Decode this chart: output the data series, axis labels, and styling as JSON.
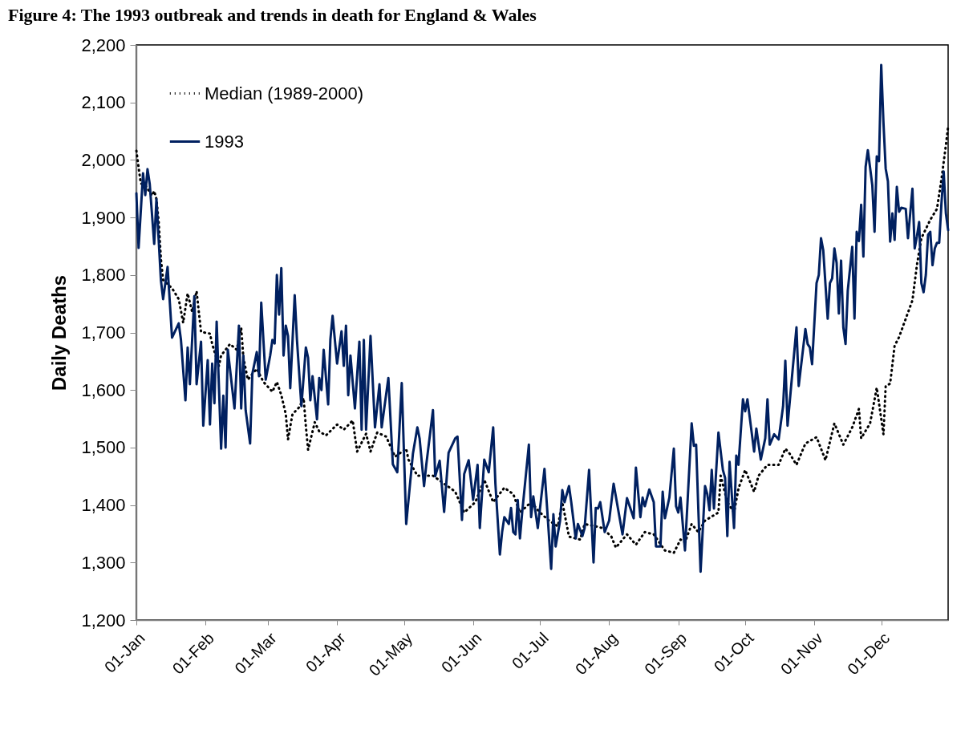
{
  "chart_data": {
    "type": "line",
    "title": "Figure 4: The 1993 outbreak and trends in death for England & Wales",
    "ylabel": "Daily Deaths",
    "xlim": [
      "--01-01",
      "--12-31"
    ],
    "xticks": [
      {
        "value": "--01-01",
        "label": "01-Jan"
      },
      {
        "value": "--02-01",
        "label": "01-Feb"
      },
      {
        "value": "--03-01",
        "label": "01-Mar"
      },
      {
        "value": "--04-01",
        "label": "01-Apr"
      },
      {
        "value": "--05-01",
        "label": "01-May"
      },
      {
        "value": "--06-01",
        "label": "01-Jun"
      },
      {
        "value": "--07-01",
        "label": "01-Jul"
      },
      {
        "value": "--08-01",
        "label": "01-Aug"
      },
      {
        "value": "--09-01",
        "label": "01-Sep"
      },
      {
        "value": "--10-01",
        "label": "01-Oct"
      },
      {
        "value": "--11-01",
        "label": "01-Nov"
      },
      {
        "value": "--12-01",
        "label": "01-Dec"
      }
    ],
    "ylim": [
      1200,
      2200
    ],
    "yticks": [
      {
        "value": 1200,
        "label": "1,200"
      },
      {
        "value": 1300,
        "label": "1,300"
      },
      {
        "value": 1400,
        "label": "1,400"
      },
      {
        "value": 1500,
        "label": "1,500"
      },
      {
        "value": 1600,
        "label": "1,600"
      },
      {
        "value": 1700,
        "label": "1,700"
      },
      {
        "value": 1800,
        "label": "1,800"
      },
      {
        "value": 1900,
        "label": "1,900"
      },
      {
        "value": 2000,
        "label": "2,000"
      },
      {
        "value": 2100,
        "label": "2,100"
      },
      {
        "value": 2200,
        "label": "2,200"
      }
    ],
    "grid": false,
    "legend": "top left",
    "series": [
      {
        "name": "Median (1989-2000)",
        "color": "#000000",
        "line_style": "dotted",
        "x": [
          "--01-01",
          "--01-02",
          "--01-03",
          "--01-05",
          "--01-08",
          "--01-09",
          "--01-10",
          "--01-11",
          "--01-12",
          "--01-13",
          "--01-17",
          "--01-20",
          "--01-22",
          "--01-24",
          "--01-26",
          "--01-28",
          "--01-29",
          "--01-30",
          "--02-03",
          "--02-04",
          "--02-07",
          "--02-08",
          "--02-12",
          "--02-15",
          "--02-17",
          "--02-18",
          "--02-20",
          "--02-24",
          "--02-27",
          "--03-03",
          "--03-05",
          "--03-07",
          "--03-09",
          "--03-10",
          "--03-12",
          "--03-15",
          "--03-17",
          "--03-18",
          "--03-19",
          "--03-22",
          "--03-24",
          "--03-27",
          "--04-01",
          "--04-04",
          "--04-08",
          "--04-10",
          "--04-14",
          "--04-16",
          "--04-19",
          "--04-23",
          "--04-27",
          "--05-02",
          "--05-03",
          "--05-07",
          "--05-14",
          "--05-19",
          "--05-22",
          "--05-24",
          "--05-28",
          "--06-02",
          "--06-06",
          "--06-10",
          "--06-15",
          "--06-19",
          "--06-22",
          "--06-27",
          "--07-01",
          "--07-05",
          "--07-09",
          "--07-11",
          "--07-14",
          "--07-19",
          "--07-21",
          "--07-26",
          "--07-29",
          "--08-02",
          "--08-04",
          "--08-09",
          "--08-13",
          "--08-17",
          "--08-21",
          "--08-26",
          "--08-30",
          "--09-02",
          "--09-04",
          "--09-07",
          "--09-10",
          "--09-13",
          "--09-19",
          "--09-20",
          "--09-23",
          "--09-26",
          "--09-28",
          "--10-01",
          "--10-05",
          "--10-07",
          "--10-11",
          "--10-16",
          "--10-19",
          "--10-21",
          "--10-24",
          "--10-28",
          "--11-02",
          "--11-06",
          "--11-10",
          "--11-14",
          "--11-18",
          "--11-21",
          "--11-22",
          "--11-26",
          "--11-29",
          "--12-02",
          "--12-03",
          "--12-05",
          "--12-07",
          "--12-09",
          "--12-12",
          "--12-15",
          "--12-17",
          "--12-19",
          "--12-23",
          "--12-26",
          "--12-28",
          "--12-30",
          "--12-31"
        ],
        "values": [
          2016,
          1987,
          1959,
          1956,
          1938,
          1946,
          1932,
          1893,
          1828,
          1791,
          1777,
          1758,
          1717,
          1768,
          1736,
          1772,
          1736,
          1701,
          1698,
          1680,
          1642,
          1660,
          1680,
          1670,
          1708,
          1656,
          1618,
          1637,
          1614,
          1597,
          1614,
          1591,
          1558,
          1514,
          1558,
          1570,
          1586,
          1537,
          1496,
          1544,
          1528,
          1521,
          1540,
          1531,
          1547,
          1493,
          1524,
          1493,
          1526,
          1519,
          1484,
          1498,
          1479,
          1451,
          1451,
          1437,
          1429,
          1423,
          1387,
          1405,
          1444,
          1405,
          1430,
          1419,
          1387,
          1405,
          1387,
          1373,
          1363,
          1405,
          1345,
          1340,
          1367,
          1363,
          1360,
          1345,
          1326,
          1349,
          1331,
          1353,
          1349,
          1321,
          1317,
          1340,
          1335,
          1367,
          1353,
          1373,
          1387,
          1451,
          1405,
          1387,
          1429,
          1461,
          1423,
          1451,
          1470,
          1470,
          1498,
          1489,
          1470,
          1507,
          1518,
          1478,
          1542,
          1505,
          1535,
          1567,
          1516,
          1542,
          1604,
          1523,
          1607,
          1611,
          1677,
          1692,
          1724,
          1756,
          1817,
          1864,
          1896,
          1915,
          1966,
          2026,
          2058
        ]
      },
      {
        "name": "1993",
        "color": "#002060",
        "line_style": "solid",
        "x": [
          "--01-01",
          "--01-02",
          "--01-04",
          "--01-05",
          "--01-06",
          "--01-07",
          "--01-09",
          "--01-10",
          "--01-12",
          "--01-13",
          "--01-15",
          "--01-17",
          "--01-20",
          "--01-21",
          "--01-23",
          "--01-24",
          "--01-25",
          "--01-27",
          "--01-28",
          "--01-30",
          "--01-31",
          "--02-02",
          "--02-03",
          "--02-04",
          "--02-05",
          "--02-06",
          "--02-08",
          "--02-09",
          "--02-10",
          "--02-11",
          "--02-14",
          "--02-16",
          "--02-17",
          "--02-18",
          "--02-19",
          "--02-21",
          "--02-22",
          "--02-24",
          "--02-25",
          "--02-26",
          "--02-28",
          "--03-02",
          "--03-03",
          "--03-04",
          "--03-05",
          "--03-06",
          "--03-07",
          "--03-08",
          "--03-09",
          "--03-10",
          "--03-11",
          "--03-13",
          "--03-14",
          "--03-16",
          "--03-18",
          "--03-19",
          "--03-20",
          "--03-21",
          "--03-23",
          "--03-24",
          "--03-25",
          "--03-26",
          "--03-28",
          "--03-29",
          "--03-30",
          "--04-01",
          "--04-03",
          "--04-04",
          "--04-05",
          "--04-06",
          "--04-07",
          "--04-09",
          "--04-11",
          "--04-12",
          "--04-13",
          "--04-14",
          "--04-16",
          "--04-18",
          "--04-20",
          "--04-21",
          "--04-24",
          "--04-26",
          "--04-28",
          "--04-30",
          "--05-02",
          "--05-05",
          "--05-07",
          "--05-08",
          "--05-10",
          "--05-11",
          "--05-14",
          "--05-15",
          "--05-17",
          "--05-19",
          "--05-21",
          "--05-24",
          "--05-25",
          "--05-27",
          "--05-28",
          "--05-30",
          "--06-01",
          "--06-03",
          "--06-04",
          "--06-06",
          "--06-08",
          "--06-10",
          "--06-11",
          "--06-13",
          "--06-14",
          "--06-15",
          "--06-17",
          "--06-18",
          "--06-19",
          "--06-20",
          "--06-21",
          "--06-22",
          "--06-23",
          "--06-26",
          "--06-27",
          "--06-28",
          "--06-30",
          "--07-03",
          "--07-06",
          "--07-07",
          "--07-08",
          "--07-10",
          "--07-11",
          "--07-12",
          "--07-14",
          "--07-15",
          "--07-17",
          "--07-18",
          "--07-20",
          "--07-21",
          "--07-23",
          "--07-25",
          "--07-26",
          "--07-27",
          "--07-28",
          "--07-30",
          "--08-01",
          "--08-03",
          "--08-07",
          "--08-09",
          "--08-12",
          "--08-13",
          "--08-15",
          "--08-16",
          "--08-17",
          "--08-19",
          "--08-21",
          "--08-22",
          "--08-24",
          "--08-25",
          "--08-26",
          "--08-28",
          "--08-30",
          "--08-31",
          "--09-01",
          "--09-02",
          "--09-04",
          "--09-07",
          "--09-08",
          "--09-09",
          "--09-10",
          "--09-11",
          "--09-13",
          "--09-14",
          "--09-15",
          "--09-16",
          "--09-17",
          "--09-19",
          "--09-21",
          "--09-22",
          "--09-23",
          "--09-24",
          "--09-26",
          "--09-27",
          "--09-28",
          "--09-30",
          "--10-01",
          "--10-02",
          "--10-05",
          "--10-06",
          "--10-08",
          "--10-10",
          "--10-11",
          "--10-12",
          "--10-14",
          "--10-16",
          "--10-18",
          "--10-19",
          "--10-20",
          "--10-24",
          "--10-25",
          "--10-28",
          "--10-29",
          "--10-30",
          "--10-31",
          "--11-02",
          "--11-03",
          "--11-04",
          "--11-05",
          "--11-07",
          "--11-08",
          "--11-09",
          "--11-10",
          "--11-11",
          "--11-12",
          "--11-13",
          "--11-14",
          "--11-15",
          "--11-16",
          "--11-18",
          "--11-19",
          "--11-20",
          "--11-21",
          "--11-22",
          "--11-23",
          "--11-24",
          "--11-25",
          "--11-27",
          "--11-28",
          "--11-29",
          "--11-30",
          "--12-01",
          "--12-02",
          "--12-03",
          "--12-04",
          "--12-05",
          "--12-06",
          "--12-07",
          "--12-08",
          "--12-09",
          "--12-10",
          "--12-12",
          "--12-13",
          "--12-15",
          "--12-16",
          "--12-17",
          "--12-18",
          "--12-19",
          "--12-20",
          "--12-21",
          "--12-22",
          "--12-23",
          "--12-24",
          "--12-25",
          "--12-26",
          "--12-27",
          "--12-28",
          "--12-29",
          "--12-30",
          "--12-31"
        ],
        "values": [
          1942,
          1847,
          1977,
          1939,
          1984,
          1958,
          1854,
          1932,
          1791,
          1758,
          1814,
          1691,
          1716,
          1687,
          1582,
          1674,
          1610,
          1763,
          1610,
          1684,
          1538,
          1652,
          1540,
          1646,
          1577,
          1719,
          1498,
          1590,
          1500,
          1670,
          1568,
          1712,
          1568,
          1660,
          1565,
          1507,
          1628,
          1666,
          1624,
          1752,
          1618,
          1660,
          1687,
          1681,
          1800,
          1731,
          1812,
          1660,
          1712,
          1694,
          1603,
          1765,
          1688,
          1572,
          1674,
          1656,
          1582,
          1624,
          1549,
          1621,
          1600,
          1670,
          1575,
          1688,
          1729,
          1646,
          1702,
          1642,
          1712,
          1591,
          1660,
          1568,
          1684,
          1531,
          1687,
          1531,
          1694,
          1535,
          1610,
          1535,
          1621,
          1471,
          1457,
          1612,
          1367,
          1489,
          1535,
          1516,
          1433,
          1470,
          1565,
          1450,
          1477,
          1388,
          1491,
          1516,
          1519,
          1374,
          1454,
          1478,
          1409,
          1470,
          1360,
          1479,
          1457,
          1535,
          1437,
          1314,
          1353,
          1379,
          1367,
          1395,
          1353,
          1349,
          1409,
          1342,
          1387,
          1505,
          1379,
          1415,
          1360,
          1463,
          1289,
          1384,
          1328,
          1373,
          1426,
          1405,
          1433,
          1405,
          1342,
          1367,
          1346,
          1360,
          1461,
          1300,
          1395,
          1394,
          1405,
          1353,
          1373,
          1437,
          1349,
          1412,
          1377,
          1465,
          1379,
          1413,
          1398,
          1427,
          1405,
          1328,
          1328,
          1423,
          1377,
          1413,
          1498,
          1398,
          1387,
          1413,
          1321,
          1542,
          1503,
          1505,
          1391,
          1284,
          1433,
          1419,
          1391,
          1461,
          1394,
          1526,
          1461,
          1447,
          1346,
          1475,
          1360,
          1486,
          1470,
          1584,
          1563,
          1584,
          1493,
          1533,
          1479,
          1516,
          1584,
          1505,
          1523,
          1514,
          1572,
          1651,
          1538,
          1709,
          1607,
          1706,
          1680,
          1674,
          1645,
          1786,
          1800,
          1864,
          1843,
          1724,
          1786,
          1794,
          1846,
          1821,
          1733,
          1825,
          1709,
          1680,
          1773,
          1849,
          1724,
          1875,
          1859,
          1922,
          1832,
          1988,
          2017,
          1956,
          1875,
          2006,
          1998,
          2165,
          2065,
          1985,
          1963,
          1858,
          1907,
          1861,
          1953,
          1910,
          1917,
          1915,
          1864,
          1950,
          1846,
          1867,
          1892,
          1786,
          1770,
          1800,
          1870,
          1875,
          1817,
          1846,
          1856,
          1856,
          1924,
          1980,
          1907,
          1878
        ]
      }
    ]
  }
}
